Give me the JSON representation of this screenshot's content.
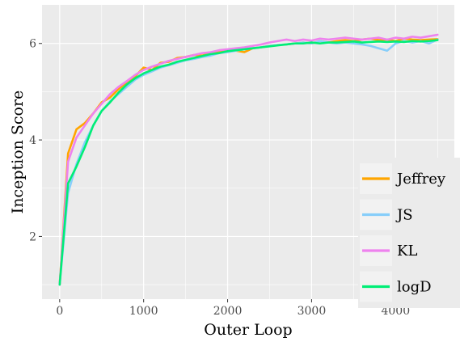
{
  "chart_data": {
    "type": "line",
    "title": "",
    "xlabel": "Outer Loop",
    "ylabel": "Inception Score",
    "xlim": [
      -210,
      4700
    ],
    "ylim": [
      0.7,
      6.8
    ],
    "xticks": [
      0,
      1000,
      2000,
      3000,
      4000
    ],
    "xtick_labels": [
      "0",
      "1000",
      "2000",
      "3000",
      "4000"
    ],
    "yticks": [
      2,
      4,
      6
    ],
    "ytick_labels": [
      "2",
      "4",
      "6"
    ],
    "grid": true,
    "legend_position": "right",
    "x": [
      0,
      100,
      200,
      300,
      400,
      500,
      600,
      700,
      800,
      900,
      1000,
      1100,
      1200,
      1300,
      1400,
      1500,
      1600,
      1700,
      1800,
      1900,
      2000,
      2100,
      2200,
      2300,
      2400,
      2500,
      2600,
      2700,
      2800,
      2900,
      3000,
      3100,
      3200,
      3300,
      3400,
      3500,
      3600,
      3700,
      3800,
      3900,
      4000,
      4100,
      4200,
      4300,
      4400,
      4500
    ],
    "series": [
      {
        "name": "Jeffrey",
        "color": "#FFA500",
        "values": [
          1.0,
          3.72,
          4.22,
          4.35,
          4.55,
          4.78,
          4.88,
          5.05,
          5.2,
          5.32,
          5.5,
          5.45,
          5.6,
          5.62,
          5.7,
          5.72,
          5.76,
          5.75,
          5.8,
          5.82,
          5.85,
          5.85,
          5.82,
          5.9,
          5.92,
          5.95,
          5.97,
          5.98,
          6.0,
          6.02,
          6.0,
          6.05,
          6.02,
          6.05,
          6.07,
          6.05,
          6.08,
          6.1,
          6.07,
          6.08,
          6.05,
          6.1,
          6.08,
          6.07,
          6.08,
          6.09
        ]
      },
      {
        "name": "JS",
        "color": "#87CEFA",
        "values": [
          1.0,
          2.9,
          3.5,
          3.95,
          4.3,
          4.6,
          4.8,
          4.95,
          5.1,
          5.25,
          5.35,
          5.42,
          5.5,
          5.55,
          5.6,
          5.65,
          5.68,
          5.72,
          5.75,
          5.8,
          5.82,
          5.85,
          5.88,
          5.9,
          5.92,
          5.95,
          5.97,
          5.98,
          6.0,
          6.02,
          6.0,
          6.05,
          6.02,
          6.0,
          6.02,
          6.0,
          5.98,
          5.95,
          5.9,
          5.85,
          6.0,
          6.05,
          6.02,
          6.05,
          6.0,
          6.08
        ]
      },
      {
        "name": "KL",
        "color": "#EE82EE",
        "values": [
          1.0,
          3.55,
          4.05,
          4.3,
          4.55,
          4.75,
          4.95,
          5.1,
          5.22,
          5.35,
          5.45,
          5.52,
          5.58,
          5.64,
          5.68,
          5.72,
          5.76,
          5.8,
          5.82,
          5.86,
          5.88,
          5.9,
          5.92,
          5.95,
          5.98,
          6.02,
          6.05,
          6.08,
          6.05,
          6.08,
          6.06,
          6.1,
          6.08,
          6.1,
          6.12,
          6.1,
          6.08,
          6.1,
          6.12,
          6.08,
          6.12,
          6.1,
          6.14,
          6.12,
          6.15,
          6.18
        ]
      },
      {
        "name": "logD",
        "color": "#00EE76",
        "values": [
          1.0,
          3.1,
          3.45,
          3.85,
          4.3,
          4.6,
          4.78,
          4.98,
          5.15,
          5.28,
          5.38,
          5.45,
          5.52,
          5.56,
          5.62,
          5.66,
          5.7,
          5.74,
          5.78,
          5.8,
          5.84,
          5.86,
          5.88,
          5.9,
          5.92,
          5.94,
          5.96,
          5.98,
          6.0,
          6.0,
          6.02,
          6.0,
          6.02,
          6.02,
          6.03,
          6.04,
          6.02,
          6.03,
          6.04,
          6.03,
          6.04,
          6.03,
          6.05,
          6.04,
          6.05,
          6.07
        ]
      }
    ]
  }
}
